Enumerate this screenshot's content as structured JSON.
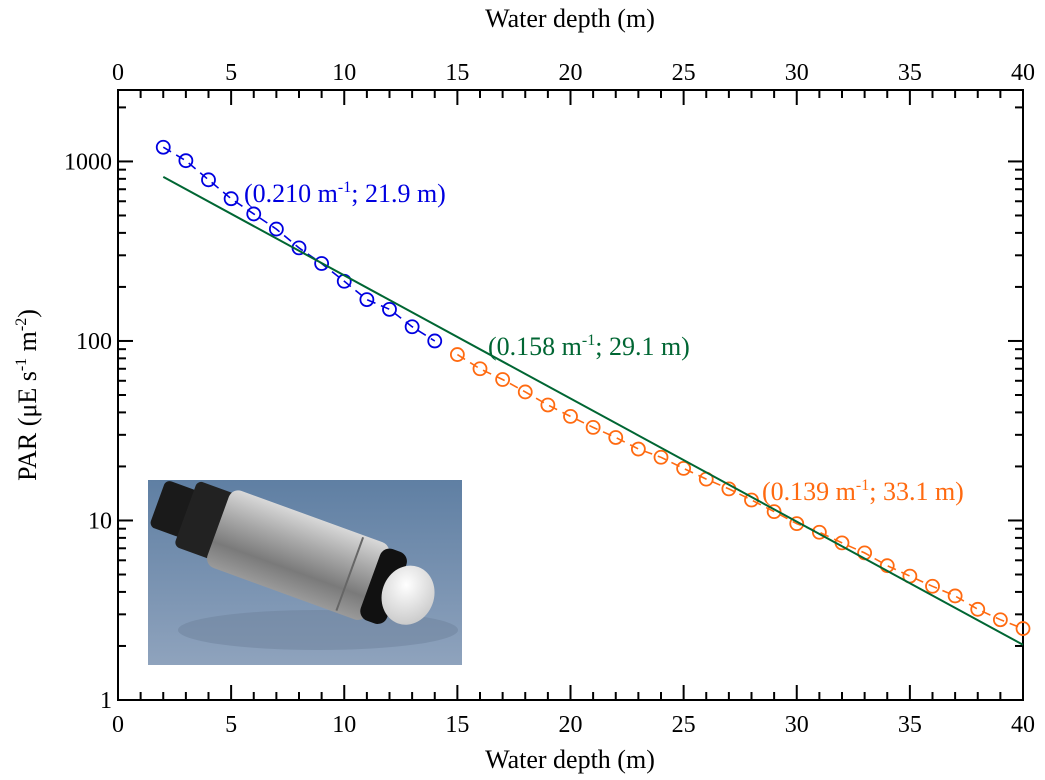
{
  "chart_data": {
    "type": "scatter",
    "xlabel_bottom": "Water depth (m)",
    "xlabel_top": "Water depth (m)",
    "ylabel": "PAR (μE s",
    "ylabel_sup1": "-1",
    "ylabel_mid": " m",
    "ylabel_sup2": "-2",
    "ylabel_end": ")",
    "xlim": [
      0,
      40
    ],
    "ylim": [
      1,
      2500
    ],
    "y_scale": "log",
    "x_ticks": [
      "0",
      "5",
      "10",
      "15",
      "20",
      "25",
      "30",
      "35",
      "40"
    ],
    "y_ticks": [
      "1",
      "10",
      "100",
      "1000"
    ],
    "series": [
      {
        "color": "#0000e0",
        "marker": "open-circle",
        "line": "dashed",
        "x": [
          2,
          3,
          4,
          5,
          6,
          7,
          8,
          9,
          10,
          11,
          12,
          13,
          14
        ],
        "y": [
          1200,
          1010,
          790,
          620,
          510,
          420,
          330,
          270,
          215,
          170,
          150,
          120,
          100
        ]
      },
      {
        "color": "#ff6a10",
        "marker": "open-circle",
        "line": "dashed",
        "x": [
          15,
          16,
          17,
          18,
          19,
          20,
          21,
          22,
          23,
          24,
          25,
          26,
          27,
          28,
          29,
          30,
          31,
          32,
          33,
          34,
          35,
          36,
          37,
          38,
          39,
          40
        ],
        "y": [
          84,
          70,
          61,
          52,
          44,
          38,
          33,
          29,
          25,
          22.5,
          19.5,
          17,
          15,
          13,
          11.2,
          9.6,
          8.6,
          7.5,
          6.6,
          5.6,
          4.9,
          4.3,
          3.8,
          3.2,
          2.8,
          2.5
        ]
      },
      {
        "color": "#006633",
        "marker": "none",
        "line": "solid",
        "x": [
          2,
          40
        ],
        "y": [
          820,
          2.03
        ]
      }
    ],
    "annotations": [
      {
        "prefix": "(0.210 m",
        "sup": "-1",
        "suffix": "; 21.9 m)",
        "color": "#0000e0"
      },
      {
        "prefix": "(0.158 m",
        "sup": "-1",
        "suffix": "; 29.1 m)",
        "color": "#006633"
      },
      {
        "prefix": "(0.139 m",
        "sup": "-1",
        "suffix": "; 33.1 m)",
        "color": "#ff6a10"
      }
    ]
  }
}
